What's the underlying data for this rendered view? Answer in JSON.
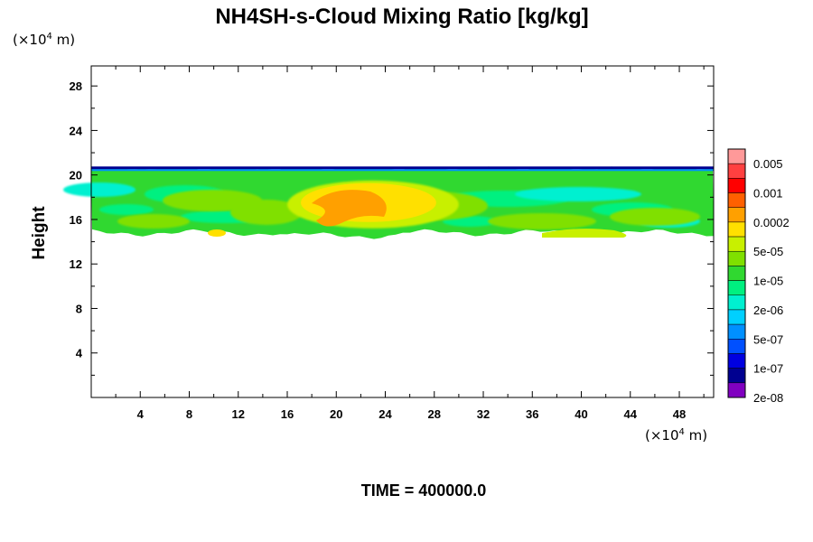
{
  "chart_data": {
    "type": "heatmap",
    "title": "NH4SH-s-Cloud Mixing Ratio [kg/kg]",
    "xunit": "(×10",
    "xunit_exp": "4",
    "xunit_tail": " m)",
    "yunit": "(×10",
    "yunit_exp": "4",
    "yunit_tail": " m)",
    "ylabel": "Height",
    "xlim": [
      0,
      50.8
    ],
    "ylim": [
      0,
      29.8
    ],
    "xticks": [
      4,
      8,
      12,
      16,
      20,
      24,
      28,
      32,
      36,
      40,
      44,
      48
    ],
    "yticks": [
      4,
      8,
      12,
      16,
      20,
      24,
      28
    ],
    "colorbar": {
      "labels": [
        "0.005",
        "0.001",
        "0.0002",
        "5e-05",
        "1e-05",
        "2e-06",
        "5e-07",
        "1e-07",
        "2e-08"
      ],
      "colors": [
        "#ff9999",
        "#ff4040",
        "#ff0000",
        "#ff6000",
        "#ffa000",
        "#ffe000",
        "#c8f000",
        "#80e000",
        "#30d830",
        "#00f080",
        "#00f0d0",
        "#00d0ff",
        "#0090ff",
        "#0050ff",
        "#0000e0",
        "#000090",
        "#8000c0"
      ]
    },
    "cloud_layer": {
      "bottom_height": 14.8,
      "top_height": 20.6,
      "core_region": {
        "x": [
          16,
          30
        ],
        "y": [
          15.2,
          19.5
        ],
        "level": "0.0002"
      }
    },
    "time_label": "TIME = 400000.0"
  }
}
